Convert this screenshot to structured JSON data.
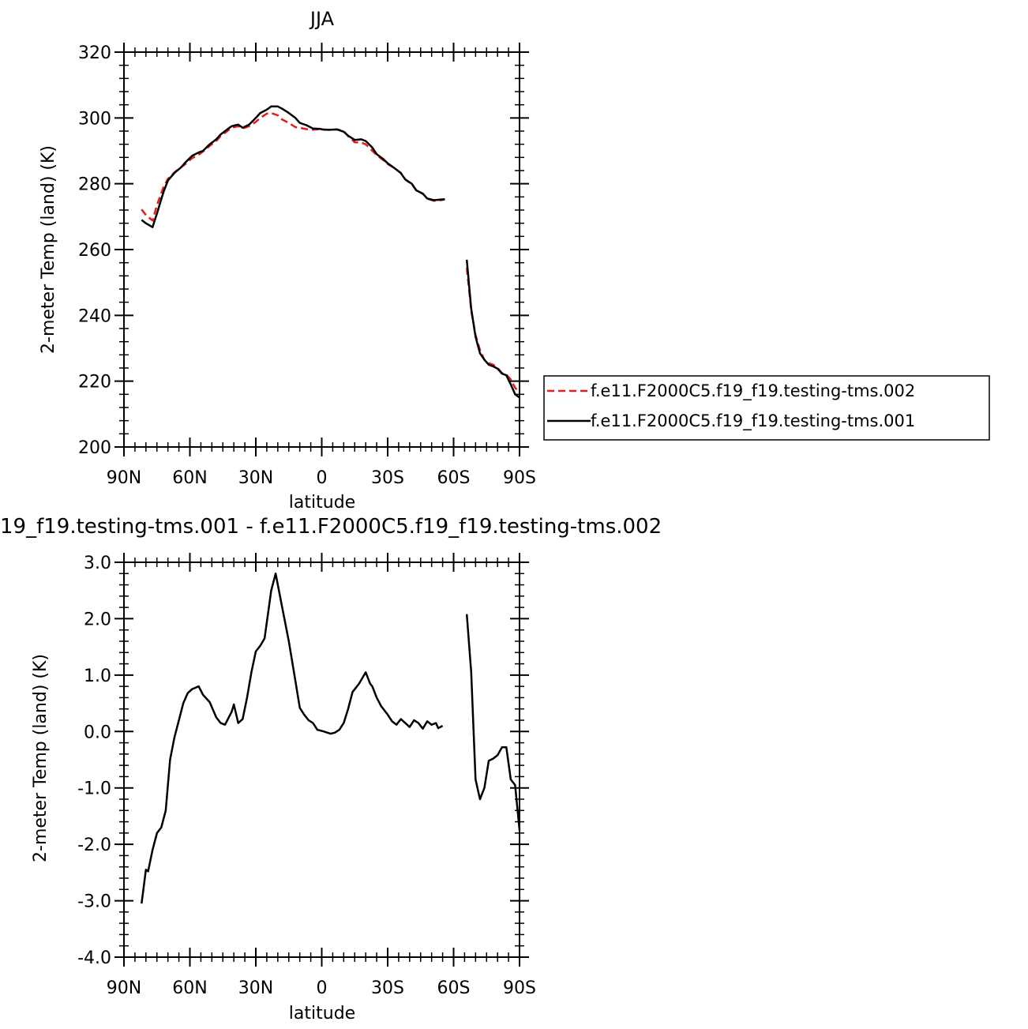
{
  "chart_data": [
    {
      "type": "line",
      "title": "JJA",
      "xlabel": "latitude",
      "ylabel": "2-meter Temp (land) (K)",
      "xlim": [
        90,
        -90
      ],
      "ylim": [
        200,
        320
      ],
      "x_tick_values": [
        90,
        60,
        30,
        0,
        -30,
        -60,
        -90
      ],
      "x_tick_labels": [
        "90N",
        "60N",
        "30N",
        "0",
        "30S",
        "60S",
        "90S"
      ],
      "y_tick_values": [
        200,
        220,
        240,
        260,
        280,
        300,
        320
      ],
      "y_tick_labels": [
        "200",
        "220",
        "240",
        "260",
        "280",
        "300",
        "320"
      ],
      "legend_position": "right",
      "series": [
        {
          "name": "f.e11.F2000C5.f19_f19.testing-tms.002",
          "color": "#e41a1c",
          "dash": "dashed",
          "segments": [
            [
              [
                82,
                272.2
              ],
              [
                80,
                270.5
              ],
              [
                77,
                268.8
              ],
              [
                75,
                273.5
              ],
              [
                72,
                279.0
              ],
              [
                70,
                281.5
              ],
              [
                67,
                283.5
              ],
              [
                64,
                285.0
              ],
              [
                62,
                286.0
              ],
              [
                59,
                287.8
              ],
              [
                56,
                288.8
              ],
              [
                54,
                289.8
              ],
              [
                51,
                291.5
              ],
              [
                48,
                293.0
              ],
              [
                46,
                294.5
              ],
              [
                43,
                296.0
              ],
              [
                41,
                297.0
              ],
              [
                38,
                297.5
              ],
              [
                36,
                296.8
              ],
              [
                33,
                297.5
              ],
              [
                30,
                298.8
              ],
              [
                28,
                300.0
              ],
              [
                25,
                301.3
              ],
              [
                23,
                301.5
              ],
              [
                20,
                300.8
              ],
              [
                18,
                299.5
              ],
              [
                15,
                298.5
              ],
              [
                12,
                297.2
              ],
              [
                10,
                297.0
              ],
              [
                7,
                296.6
              ],
              [
                4,
                296.4
              ],
              [
                1,
                296.6
              ],
              [
                -1,
                296.5
              ],
              [
                -4,
                296.3
              ],
              [
                -7,
                296.5
              ],
              [
                -10,
                296.0
              ],
              [
                -12,
                294.5
              ],
              [
                -15,
                292.6
              ],
              [
                -18,
                292.5
              ],
              [
                -20,
                292.0
              ],
              [
                -23,
                290.0
              ],
              [
                -25,
                288.7
              ],
              [
                -28,
                287.2
              ],
              [
                -30,
                286.0
              ],
              [
                -33,
                284.8
              ],
              [
                -36,
                283.3
              ],
              [
                -38,
                281.3
              ],
              [
                -41,
                279.8
              ],
              [
                -43,
                278.0
              ],
              [
                -46,
                277.0
              ],
              [
                -48,
                275.5
              ],
              [
                -51,
                274.8
              ],
              [
                -54,
                275.0
              ],
              [
                -56,
                275.2
              ]
            ],
            [
              [
                -66,
                254.5
              ],
              [
                -68,
                241.5
              ],
              [
                -70,
                234.0
              ],
              [
                -72,
                229.5
              ],
              [
                -74,
                226.5
              ],
              [
                -76,
                225.5
              ],
              [
                -78,
                225.0
              ],
              [
                -80,
                224.0
              ],
              [
                -82,
                222.5
              ],
              [
                -84,
                222.0
              ],
              [
                -86,
                220.5
              ],
              [
                -88,
                218.0
              ],
              [
                -90,
                216.5
              ]
            ]
          ]
        },
        {
          "name": "f.e11.F2000C5.f19_f19.testing-tms.001",
          "color": "#000000",
          "dash": "solid",
          "segments": [
            [
              [
                82,
                269.0
              ],
              [
                80,
                268.0
              ],
              [
                77,
                266.8
              ],
              [
                75,
                271.0
              ],
              [
                72,
                277.5
              ],
              [
                70,
                281.0
              ],
              [
                67,
                283.3
              ],
              [
                64,
                285.0
              ],
              [
                62,
                286.5
              ],
              [
                59,
                288.5
              ],
              [
                56,
                289.5
              ],
              [
                54,
                290.0
              ],
              [
                51,
                292.0
              ],
              [
                48,
                293.5
              ],
              [
                46,
                295.0
              ],
              [
                43,
                296.5
              ],
              [
                41,
                297.5
              ],
              [
                38,
                298.0
              ],
              [
                36,
                297.0
              ],
              [
                33,
                298.0
              ],
              [
                30,
                300.0
              ],
              [
                28,
                301.5
              ],
              [
                25,
                302.5
              ],
              [
                23,
                303.5
              ],
              [
                20,
                303.5
              ],
              [
                18,
                302.8
              ],
              [
                15,
                301.5
              ],
              [
                12,
                300.0
              ],
              [
                10,
                298.5
              ],
              [
                7,
                297.8
              ],
              [
                4,
                296.8
              ],
              [
                1,
                296.7
              ],
              [
                -1,
                296.4
              ],
              [
                -4,
                296.4
              ],
              [
                -7,
                296.5
              ],
              [
                -10,
                295.8
              ],
              [
                -12,
                294.6
              ],
              [
                -15,
                293.3
              ],
              [
                -18,
                293.5
              ],
              [
                -20,
                293.0
              ],
              [
                -23,
                291.0
              ],
              [
                -25,
                289.0
              ],
              [
                -28,
                287.5
              ],
              [
                -30,
                286.2
              ],
              [
                -33,
                284.8
              ],
              [
                -36,
                283.2
              ],
              [
                -38,
                281.3
              ],
              [
                -41,
                280.0
              ],
              [
                -43,
                278.0
              ],
              [
                -46,
                277.0
              ],
              [
                -48,
                275.5
              ],
              [
                -51,
                275.0
              ],
              [
                -54,
                275.2
              ],
              [
                -56,
                275.3
              ]
            ],
            [
              [
                -66,
                256.9
              ],
              [
                -68,
                242.0
              ],
              [
                -70,
                233.5
              ],
              [
                -72,
                228.5
              ],
              [
                -74,
                226.5
              ],
              [
                -76,
                225.0
              ],
              [
                -78,
                224.5
              ],
              [
                -80,
                223.8
              ],
              [
                -82,
                222.3
              ],
              [
                -84,
                221.8
              ],
              [
                -86,
                219.0
              ],
              [
                -88,
                216.0
              ],
              [
                -90,
                215.0
              ]
            ]
          ]
        }
      ]
    },
    {
      "type": "line",
      "title": "19_f19.testing-tms.001 - f.e11.F2000C5.f19_f19.testing-tms.002",
      "xlabel": "latitude",
      "ylabel": "2-meter Temp (land) (K)",
      "xlim": [
        90,
        -90
      ],
      "ylim": [
        -4.0,
        3.0
      ],
      "x_tick_values": [
        90,
        60,
        30,
        0,
        -30,
        -60,
        -90
      ],
      "x_tick_labels": [
        "90N",
        "60N",
        "30N",
        "0",
        "30S",
        "60S",
        "90S"
      ],
      "y_tick_values": [
        -4,
        -3,
        -2,
        -1,
        0,
        1,
        2,
        3
      ],
      "y_tick_labels": [
        "-4.0",
        "-3.0",
        "-2.0",
        "-1.0",
        "0.0",
        "1.0",
        "2.0",
        "3.0"
      ],
      "series": [
        {
          "color": "#000000",
          "dash": "solid",
          "segments": [
            [
              [
                82,
                -3.05
              ],
              [
                80,
                -2.45
              ],
              [
                79,
                -2.48
              ],
              [
                77,
                -2.1
              ],
              [
                75,
                -1.8
              ],
              [
                73,
                -1.7
              ],
              [
                71,
                -1.4
              ],
              [
                69,
                -0.5
              ],
              [
                67,
                -0.1
              ],
              [
                65,
                0.2
              ],
              [
                63,
                0.5
              ],
              [
                61,
                0.68
              ],
              [
                59,
                0.75
              ],
              [
                56,
                0.8
              ],
              [
                54,
                0.65
              ],
              [
                51,
                0.52
              ],
              [
                48,
                0.25
              ],
              [
                46,
                0.15
              ],
              [
                44,
                0.12
              ],
              [
                41,
                0.35
              ],
              [
                40,
                0.48
              ],
              [
                38,
                0.15
              ],
              [
                36,
                0.22
              ],
              [
                34,
                0.6
              ],
              [
                32,
                1.05
              ],
              [
                30,
                1.42
              ],
              [
                28,
                1.52
              ],
              [
                26,
                1.65
              ],
              [
                23,
                2.5
              ],
              [
                21,
                2.8
              ],
              [
                18,
                2.2
              ],
              [
                15,
                1.6
              ],
              [
                12,
                0.9
              ],
              [
                10,
                0.42
              ],
              [
                8,
                0.3
              ],
              [
                6,
                0.2
              ],
              [
                4,
                0.15
              ],
              [
                2,
                0.03
              ],
              [
                -1,
                0.0
              ],
              [
                -4,
                -0.04
              ],
              [
                -6,
                -0.02
              ],
              [
                -8,
                0.03
              ],
              [
                -10,
                0.15
              ],
              [
                -12,
                0.4
              ],
              [
                -14,
                0.7
              ],
              [
                -17,
                0.85
              ],
              [
                -20,
                1.05
              ],
              [
                -22,
                0.85
              ],
              [
                -23,
                0.8
              ],
              [
                -25,
                0.6
              ],
              [
                -27,
                0.45
              ],
              [
                -30,
                0.3
              ],
              [
                -32,
                0.18
              ],
              [
                -34,
                0.12
              ],
              [
                -36,
                0.22
              ],
              [
                -38,
                0.15
              ],
              [
                -40,
                0.08
              ],
              [
                -42,
                0.2
              ],
              [
                -44,
                0.15
              ],
              [
                -46,
                0.05
              ],
              [
                -48,
                0.18
              ],
              [
                -50,
                0.12
              ],
              [
                -52,
                0.15
              ],
              [
                -53,
                0.06
              ],
              [
                -55,
                0.1
              ]
            ],
            [
              [
                -66,
                2.08
              ],
              [
                -68,
                1.05
              ],
              [
                -70,
                -0.85
              ],
              [
                -72,
                -1.2
              ],
              [
                -74,
                -1.0
              ],
              [
                -76,
                -0.52
              ],
              [
                -78,
                -0.48
              ],
              [
                -80,
                -0.42
              ],
              [
                -82,
                -0.28
              ],
              [
                -84,
                -0.28
              ],
              [
                -86,
                -0.85
              ],
              [
                -88,
                -0.95
              ],
              [
                -90,
                -1.75
              ]
            ]
          ]
        }
      ]
    }
  ]
}
